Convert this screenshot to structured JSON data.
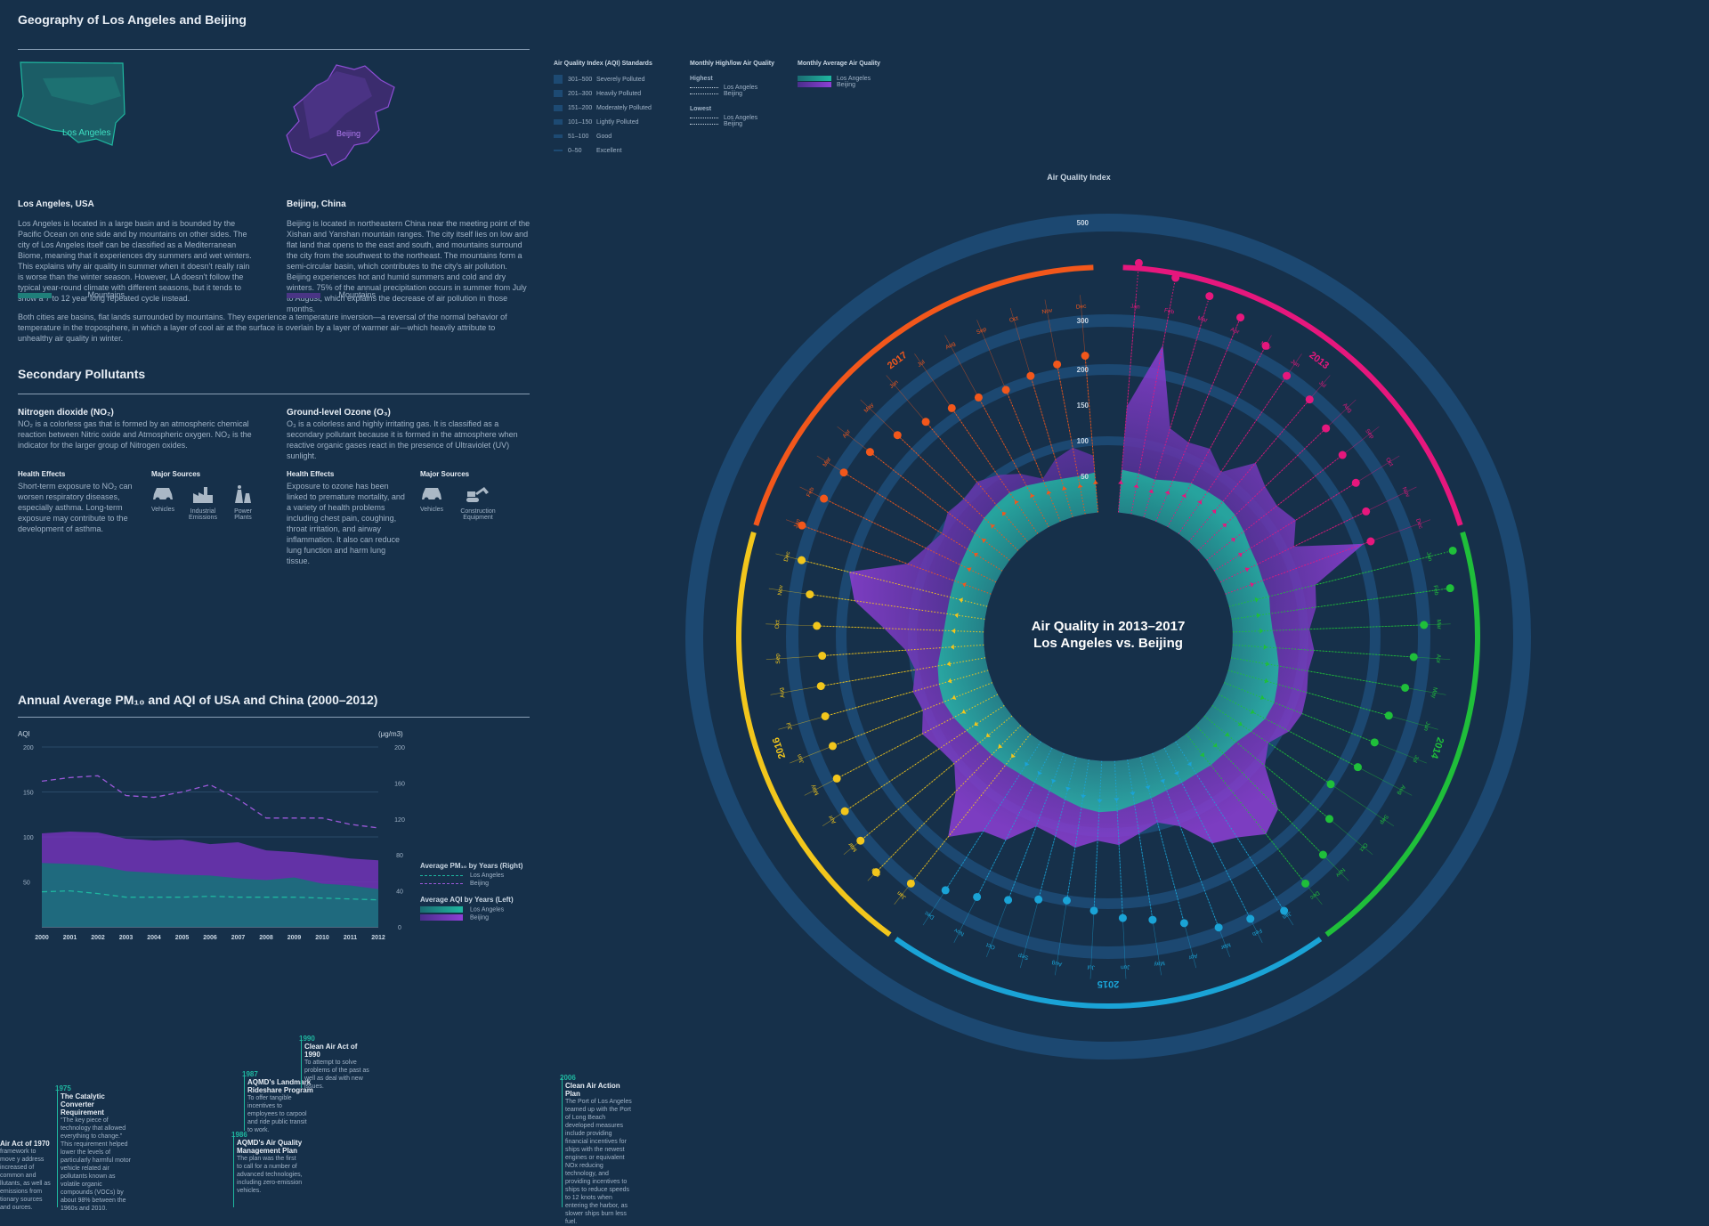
{
  "geography": {
    "title": "Geography of Los Angeles and Beijing",
    "la_map_label": "Los Angeles",
    "bj_map_label": "Beijing",
    "la_title": "Los Angeles, USA",
    "la_text": "Los Angeles is located in a large basin and is bounded by the Pacific Ocean on one side and by mountains on other sides. The city of Los Angeles itself can be classified as a Mediterranean Biome, meaning that it experiences dry summers and wet winters. This explains why air quality in summer when it doesn't really rain is worse than the winter season. However, LA doesn't follow the typical year-round climate with different seasons, but it tends to show a 7 to 12 year long repeated cycle instead.",
    "bj_title": "Beijing, China",
    "bj_text": "Beijing is located in northeastern China near the meeting point of the Xishan and Yanshan mountain ranges. The city itself lies on low and flat land that opens to the east and south, and mountains surround the city from the southwest to the northeast. The mountains form a semi-circular basin, which contributes to the city's air pollution. Beijing experiences hot and humid summers and cold and dry winters. 75% of the annual precipitation occurs in summer from July to August, which explains the decrease of air pollution in those months.",
    "mountains_label": "Mountains",
    "both_text": "Both cities are basins, flat lands surrounded by mountains. They experience a temperature inversion—a reversal of the normal behavior of temperature in the troposphere, in which a layer of cool air at the surface is overlain by a layer of warmer air—which heavily attribute to unhealthy air quality in winter."
  },
  "pollutants": {
    "title": "Secondary  Pollutants",
    "no2_title": "Nitrogen dioxide (NO₂)",
    "no2_text": "NO₂ is a colorless gas that is formed by an atmospheric chemical reaction between Nitric oxide and Atmospheric oxygen. NO₂ is the indicator for the larger group of Nitrogen oxides.",
    "o3_title": "Ground-level Ozone (O₃)",
    "o3_text": "O₃ is a colorless and highly irritating gas. It is classified as a secondary pollutant because it is formed in the atmosphere when reactive organic gases react in the presence of Ultraviolet (UV) sunlight.",
    "health_label": "Health Effects",
    "sources_label": "Major Sources",
    "no2_health": "Short-term exposure to NO₂ can worsen respiratory diseases, especially asthma. Long-term exposure may contribute to the development of asthma.",
    "o3_health": "Exposure to ozone has been linked to premature mortality, and a variety of health problems including chest pain, coughing, throat irritation, and airway inflammation. It also can reduce lung function and harm lung tissue.",
    "no2_sources": [
      "Vehicles",
      "Industrial Emissions",
      "Power Plants"
    ],
    "o3_sources": [
      "Vehicles",
      "Construction Equipment"
    ]
  },
  "annual": {
    "title": "Annual Average PM₁₀ and AQI of USA and China (2000–2012)",
    "left_axis_label": "AQI",
    "right_axis_label": "(μg/m3)",
    "legend_pm_title": "Average PM₁₀ by Years (Right)",
    "legend_aqi_title": "Average AQI by Years (Left)",
    "legend_la": "Los Angeles",
    "legend_bj": "Beijing"
  },
  "legend_top": {
    "aqi_title": "Air Quality Index (AQI) Standards",
    "aqi_levels": [
      {
        "range": "301–500",
        "label": "Severely Polluted"
      },
      {
        "range": "201–300",
        "label": "Heavily Polluted"
      },
      {
        "range": "151–200",
        "label": "Moderately Polluted"
      },
      {
        "range": "101–150",
        "label": "Lightly Polluted"
      },
      {
        "range": "51–100",
        "label": "Good"
      },
      {
        "range": "0–50",
        "label": "Excellent"
      }
    ],
    "hl_title": "Monthly High/low Air Quality",
    "highest": "Highest",
    "lowest": "Lowest",
    "la": "Los Angeles",
    "bj": "Beijing",
    "avg_title": "Monthly Average Air Quality"
  },
  "radial": {
    "center_line1": "Air Quality in 2013–2017",
    "center_line2": "Los Angeles vs. Beijing",
    "axis_title": "Air Quality Index",
    "axis_ticks": [
      "500",
      "300",
      "200",
      "150",
      "100",
      "50"
    ],
    "years": [
      "2013",
      "2014",
      "2015",
      "2016",
      "2017"
    ],
    "months": [
      "Jan",
      "Feb",
      "Mar",
      "Apr",
      "May",
      "Jun",
      "Jul",
      "Aug",
      "Sep",
      "Oct",
      "Nov",
      "Dec"
    ]
  },
  "timeline": [
    {
      "year": "",
      "title": "Air Act of 1970",
      "body": "framework to move y address increased of common and llutants, as well as emissions from tionary sources and ources."
    },
    {
      "year": "1975",
      "title": "The Catalytic Converter Requirement",
      "body": "“The key piece of technology that allowed everything to change.” This requirement helped lower the levels of particularly harmful motor vehicle related air pollutants known as volatile organic compounds (VOCs) by about 98% between the 1960s and 2010."
    },
    {
      "year": "1986",
      "title": "AQMD's Air Quality Management Plan",
      "body": "The plan was the first to call for a number of advanced technologies, including zero-emission vehicles."
    },
    {
      "year": "1987",
      "title": "AQMD's Landmark Rideshare Program",
      "body": "To offer tangible incentives to employees to carpool and ride public transit to work."
    },
    {
      "year": "1990",
      "title": "Clean Air Act of 1990",
      "body": "To attempt to solve problems of the past as well as deal with new issues."
    },
    {
      "year": "2006",
      "title": "Clean Air Action Plan",
      "body": "The Port of Los Angeles teamed up with the Port of Long Beach developed measures include providing financial incentives for ships with the newest engines or equivalent NOx reducing technology, and providing incentives to ships to reduce speeds to 12 knots when entering the harbor, as slower ships burn less fuel."
    }
  ],
  "colors": {
    "bg": "#16304a",
    "la": "#1fb7a0",
    "bj": "#7a3bbd",
    "y2013": "#e6177d",
    "y2014": "#1fbf3a",
    "y2015": "#1aa3d6",
    "y2016": "#f2c61c",
    "y2017": "#f2571b"
  },
  "chart_data": [
    {
      "type": "area",
      "title": "Annual Average PM₁₀ and AQI of USA and China (2000–2012)",
      "x": [
        "2000",
        "2001",
        "2002",
        "2003",
        "2004",
        "2005",
        "2006",
        "2007",
        "2008",
        "2009",
        "2010",
        "2011",
        "2012"
      ],
      "ylim_left": [
        0,
        200
      ],
      "ylim_right": [
        0,
        200
      ],
      "left_ticks": [
        50,
        100,
        150,
        200
      ],
      "right_ticks": [
        0,
        40,
        80,
        120,
        160,
        200
      ],
      "series": [
        {
          "name": "Beijing",
          "axis": "left",
          "kind": "area",
          "values": [
            104,
            106,
            105,
            98,
            96,
            97,
            92,
            94,
            85,
            83,
            80,
            76,
            74
          ]
        },
        {
          "name": "Los Angeles",
          "axis": "left",
          "kind": "area",
          "values": [
            71,
            70,
            68,
            62,
            60,
            58,
            57,
            54,
            52,
            55,
            48,
            46,
            42
          ]
        },
        {
          "name": "Beijing",
          "axis": "right",
          "kind": "dashed",
          "values": [
            162,
            166,
            168,
            146,
            144,
            150,
            158,
            142,
            121,
            121,
            121,
            114,
            110
          ]
        },
        {
          "name": "Los Angeles",
          "axis": "right",
          "kind": "dashed",
          "values": [
            39,
            40,
            37,
            33,
            33,
            33,
            34,
            33,
            33,
            33,
            32,
            31,
            30
          ]
        }
      ]
    },
    {
      "type": "radial",
      "title": "Air Quality in 2013–2017 Los Angeles vs. Beijing",
      "months_per_year": 12,
      "years": [
        "2013",
        "2014",
        "2015",
        "2016",
        "2017"
      ],
      "beijing_monthly_avg": [
        150,
        260,
        130,
        120,
        125,
        105,
        145,
        130,
        125,
        135,
        115,
        210,
        125,
        120,
        108,
        115,
        110,
        115,
        118,
        112,
        95,
        110,
        165,
        180,
        160,
        150,
        110,
        95,
        105,
        118,
        112,
        125,
        115,
        110,
        145,
        150,
        185,
        130,
        105,
        110,
        120,
        105,
        110,
        100,
        110,
        140,
        185,
        200,
        125,
        110,
        100,
        110,
        105,
        110,
        100,
        85,
        65,
        85,
        95,
        80
      ],
      "la_monthly_avg": [
        60,
        58,
        55,
        62,
        70,
        72,
        74,
        72,
        66,
        60,
        58,
        56,
        58,
        55,
        56,
        62,
        68,
        72,
        76,
        74,
        66,
        58,
        56,
        56,
        54,
        55,
        56,
        60,
        64,
        70,
        72,
        68,
        62,
        57,
        55,
        54,
        56,
        58,
        60,
        64,
        70,
        74,
        72,
        68,
        60,
        56,
        54,
        54,
        55,
        56,
        58,
        62,
        66,
        68,
        70,
        66,
        60,
        56,
        54,
        56
      ],
      "beijing_monthly_high": [
        420,
        400,
        380,
        360,
        330,
        300,
        290,
        270,
        260,
        250,
        240,
        225,
        380,
        360,
        300,
        280,
        270,
        250,
        240,
        230,
        200,
        240,
        280,
        300,
        320,
        300,
        290,
        260,
        240,
        230,
        215,
        200,
        210,
        230,
        250,
        270,
        300,
        330,
        310,
        300,
        280,
        260,
        255,
        250,
        240,
        250,
        270,
        300,
        320,
        300,
        290,
        270,
        250,
        230,
        220,
        210,
        200,
        210,
        220,
        230
      ],
      "la_monthly_low": [
        40,
        38,
        36,
        42,
        48,
        52,
        54,
        50,
        46,
        42,
        40,
        38,
        38,
        36,
        38,
        44,
        50,
        54,
        56,
        52,
        46,
        40,
        38,
        36,
        36,
        38,
        40,
        42,
        46,
        52,
        54,
        50,
        44,
        40,
        38,
        36,
        38,
        40,
        42,
        46,
        52,
        56,
        54,
        50,
        42,
        40,
        38,
        36,
        38,
        40,
        42,
        44,
        48,
        50,
        52,
        48,
        42,
        40,
        38,
        40
      ]
    }
  ]
}
